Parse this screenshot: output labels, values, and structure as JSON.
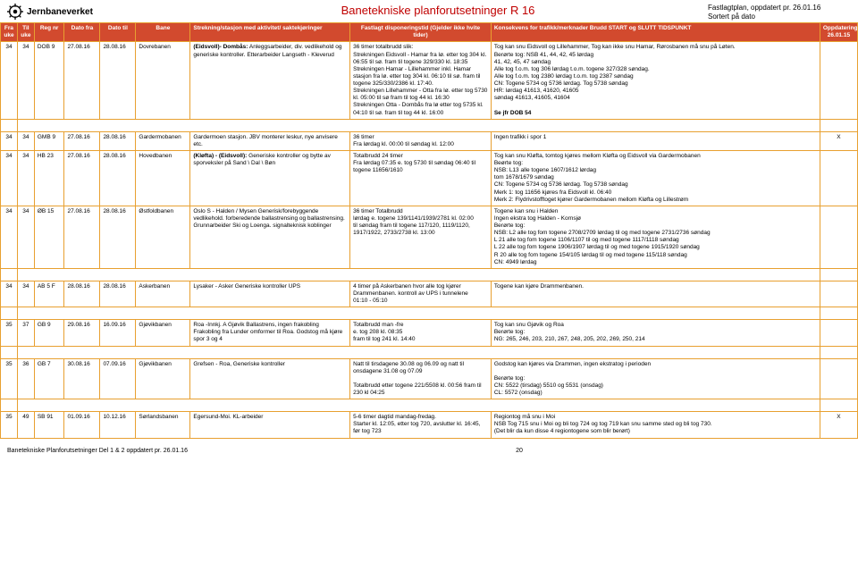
{
  "header": {
    "brand": "Jernbaneverket",
    "title": "Banetekniske planforutsetninger R 16",
    "meta1": "Fastlagtplan, oppdatert pr. 26.01.16",
    "meta2": "Sortert på dato"
  },
  "columns": {
    "fra": "Fra uke",
    "til": "Til uke",
    "reg": "Reg nr",
    "dfra": "Dato fra",
    "dtil": "Dato til",
    "bane": "Bane",
    "strek": "Strekning/stasjon med aktivitet/ saktekjøringer",
    "fast": "Fastlagt disponeringstid\n(Gjelder ikke hvite tider)",
    "kons": "Konsekvens for trafikk/merknader\nBrudd START og SLUTT TIDSPUNKT",
    "opp": "Oppdatering 26.01.15"
  },
  "rows": [
    {
      "fra": "34",
      "til": "34",
      "reg": "DOB 9",
      "dfra": "27.08.16",
      "dtil": "28.08.16",
      "bane": "Dovrebanen",
      "strek": "(Eidsvoll)- Dombås: Anleggsarbeider, div. vedlikehold og generiske kontroller. Etterarbeider Langseth - Kleverud",
      "fast": "36 timer totalbrudd slik:\nStrekningen Eidsvoll - Hamar fra lø. etter tog 304 kl. 06:55 til sø. fram til togene 329/330 kl. 18:35\nStrekningen Hamar - Lillehammer inkl. Hamar stasjon fra lø. etter tog 304 kl. 06:10 til sø. fram til togene 325/330/2386 kl. 17:40.\nStrekningen Lillehammer - Otta fra lø. etter tog 5730 kl. 05:00 til sø fram til tog 44 kl. 16:30\nStrekningen Otta - Dombås fra lø etter tog 5735 kl. 04:10 til sø. fram til tog 44 kl. 16:00",
      "kons": "Tog kan snu Eidsvoll og Lillehammer, Tog kan ikke snu Hamar, Rørosbanen må snu på Løten.\nBerørte tog: NSB 41, 44, 42, 45 lørdag\n41, 42, 45, 47 søndag\nAlle tog f.o.m. tog 306 lørdag t.o.m. togene 327/328 søndag.\nAlle tog f.o.m. tog 2380 lørdag t.o.m. tog 2387 søndag\nCN: Togene 5734 og 5736 lørdag.  Tog 5738 søndag\nHR: lørdag 41613, 41620, 41605\nsøndag 41613, 41605, 41604\n\nSe jfr DOB 54",
      "opp": ""
    },
    {
      "fra": "34",
      "til": "34",
      "reg": "GMB 9",
      "dfra": "27.08.16",
      "dtil": "28.08.16",
      "bane": "Gardermobanen",
      "strek": "Gardermoen stasjon. JBV monterer leskur, nye anvisere etc.",
      "fast": "36 timer\nFra lørdag kl. 00:00 til søndag kl. 12:00",
      "kons": "Ingen trafikk i spor 1",
      "opp": "X"
    },
    {
      "fra": "34",
      "til": "34",
      "reg": "HB 23",
      "dfra": "27.08.16",
      "dtil": "28.08.16",
      "bane": "Hovedbanen",
      "strek": "(Kløfta) - (Eidsvoll):\nGeneriske kontroller og bytte av sporveksler på Sand \\ Dal \\ Bøn",
      "fast": "Totalbrudd 24 timer\nFra lørdag  07:35 e. tog 5730 til søndag 06:40 til togene 11656/1610",
      "kons": "Tog kan snu Kløfta, tomtog kjøres mellom Kløfta og Eidsvoll via Gardermobanen\nBeørte tog:\nNSB: L13 alle togene 1607/1612 lørdag\ntom 1678/1679 søndag\nCN:  Togene 5734 og 5736 lørdag.  Tog 5738 søndag\nMerk 1: tog 11656 kjøres fra Eidsvoll kl. 06:40\nMerk 2: Flydrivstofftoget kjører Gardermobanen mellom Kløfta og Lillestrøm",
      "opp": ""
    },
    {
      "fra": "34",
      "til": "34",
      "reg": "ØB 15",
      "dfra": "27.08.16",
      "dtil": "28.08.16",
      "bane": "Østfoldbanen",
      "strek": "Oslo S - Halden / Mysen Generisk/forebyggende vedlikehold. forberedende ballastrensing og ballastrensing. Grunnarbeider Ski og Loenga. signalteknisk koblinger",
      "fast": "36 timer Totalbrudd\nlørdag e. togene 139/1141/1939/2781 kl. 02:00\ntil søndag fram til togene 117/120, 1119/1120, 1917/1922, 2733/2738 kl. 13:00",
      "kons": "Togene kan snu i Halden\nIngen ekstra tog Halden - Kornsjø\nBerørte tog:\nNSB: L2 alle tog fom togene 2708/2709 lørdag til og med togene 2731/2736 søndag\nL 21 alle tog fom togene 1106/1107 til og med togene 1117/1118 søndag\nL 22 alle tog fom togene 1906/1907 lørdag til og med togene 1915/1920 søndag\nR 20 alle tog fom togene 154/105 lørdag til og med togene 115/118 søndag\nCN: 4949 lørdag",
      "opp": ""
    },
    {
      "fra": "34",
      "til": "34",
      "reg": "AB 5 F",
      "dfra": "28.08.16",
      "dtil": "28.08.16",
      "bane": "Askerbanen",
      "strek": "Lysaker - Asker\nGeneriske kontroller UPS",
      "fast": "4 timer på Askerbanen hvor alle tog kjører Drammenbanen. kontroll av UPS i tunnelene\n01:10 - 05:10",
      "kons": "Togene kan kjøre Drammenbanen.",
      "opp": ""
    },
    {
      "fra": "35",
      "til": "37",
      "reg": "GB 9",
      "dfra": "29.08.16",
      "dtil": "16.09.16",
      "bane": "Gjøvikbanen",
      "strek": "Roa -Innkj. A Gjøvik\nBallastrens, ingen frakobling\nFrakobling fra Lunder omformer til Roa. Godstog må kjøre spor 3 og 4",
      "fast": "Totalbrudd man -fre\ne. tog 208 kl. 08:35\nfram til tog 241 kl. 14:40",
      "kons": "Tog kan snu Gjøvik og Roa\nBerørte tog:\nNG: 265, 246, 203, 210, 267, 248, 205, 202, 269, 250, 214",
      "opp": ""
    },
    {
      "fra": "35",
      "til": "36",
      "reg": "GB 7",
      "dfra": "30.08.16",
      "dtil": "07.09.16",
      "bane": "Gjøvikbanen",
      "strek": "Grefsen - Roa,  Generiske kontroller",
      "fast": "Natt til tirsdagene 30.08 og 06.09 og natt til onsdagene 31.08 og 07.09\n\nTotalbrudd etter togene 221/5508 kl. 00:56 fram til 230 kl 04:25",
      "kons": "Godstog kan kjøres via Drammen, ingen ekstratog i perioden\n\nBerørte tog:\nCN: 5522 (tirsdag) 5510 og 5531 (onsdag)\nCL: 5572 (onsdag)",
      "opp": ""
    },
    {
      "fra": "35",
      "til": "49",
      "reg": "SB 91",
      "dfra": "01.09.16",
      "dtil": "10.12.16",
      "bane": "Sørlandsbanen",
      "strek": "Egersund-Moi. KL-arbeider",
      "fast": "5-6 timer dagtid mandag-fredag.\nStarter kl. 12:05, etter tog 720, avslutter kl. 16:45, før tog 723",
      "kons": "Regiontog må snu i Moi\nNSB Tog 715 snu i Moi og bli tog 724 og tog 719 kan snu samme sted og bli tog 730.\n(Det blir da kun disse 4 regiontogene som blir berørt)",
      "opp": "X"
    }
  ],
  "footer": {
    "left": "Banetekniske Planforutsetninger Del 1 & 2 oppdatert pr. 26.01.16",
    "page": "20"
  }
}
